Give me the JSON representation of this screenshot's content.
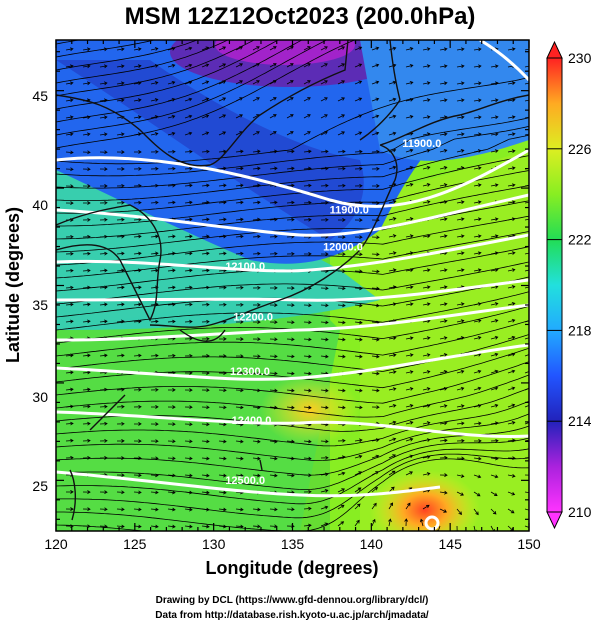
{
  "title": "MSM 12Z12Oct2023 (200.0hPa)",
  "xlabel": "Longitude (degrees)",
  "ylabel": "Latitude  (degrees)",
  "credits": [
    "Drawing by DCL (https://www.gfd-dennou.org/library/dcl/)",
    "Data from http://database.rish.kyoto-u.ac.jp/arch/jmadata/"
  ],
  "map": {
    "lon_range": [
      120,
      150
    ],
    "lat_range": [
      22.4,
      47.6
    ],
    "lon_ticks": [
      "120",
      "125",
      "130",
      "135",
      "140",
      "145",
      "150"
    ],
    "lat_ticks": [
      "25",
      "30",
      "35",
      "40",
      "45"
    ],
    "field": "temperature",
    "overlays": [
      "streamlines",
      "wind-vectors",
      "height-contours",
      "coastlines"
    ]
  },
  "colorbar": {
    "min": 210,
    "max": 230,
    "tick_labels": [
      "230",
      "226",
      "222",
      "218",
      "214",
      "210"
    ],
    "palette": [
      "#ff33ff",
      "#9922cc",
      "#2222cc",
      "#3388ff",
      "#22ddee",
      "#22dd55",
      "#99ee22",
      "#eeee22",
      "#ffaa22",
      "#ff2222"
    ]
  },
  "contour_labels": [
    {
      "text": "11900.0",
      "lon": 143.2,
      "lat": 42.1
    },
    {
      "text": "11900.0",
      "lon": 138.6,
      "lat": 38.7
    },
    {
      "text": "12000.0",
      "lon": 138.2,
      "lat": 36.8
    },
    {
      "text": "12100.0",
      "lon": 132.0,
      "lat": 35.8
    },
    {
      "text": "12200.0",
      "lon": 132.5,
      "lat": 33.2
    },
    {
      "text": "12300.0",
      "lon": 132.3,
      "lat": 30.4
    },
    {
      "text": "12400.0",
      "lon": 132.4,
      "lat": 27.9
    },
    {
      "text": "12500.0",
      "lon": 132.0,
      "lat": 24.8
    }
  ]
}
